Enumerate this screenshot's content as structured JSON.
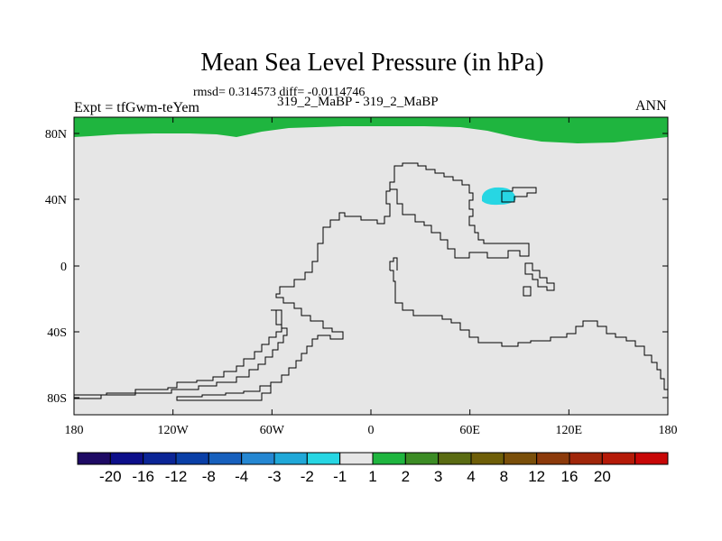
{
  "title": "Mean Sea Level Pressure (in hPa)",
  "stats": "rmsd= 0.314573 diff= -0.0114746",
  "expt": "Expt = tfGwm-teYem",
  "cases": "319_2_MaBP - 319_2_MaBP",
  "season": "ANN",
  "map": {
    "background": "#e6e6e6",
    "arctic_band_color": "#1fb53f",
    "anomaly_patch_color": "#27d6e3",
    "x_ticks": [
      "180",
      "120W",
      "60W",
      "0",
      "60E",
      "120E",
      "180"
    ],
    "y_ticks": [
      "80N",
      "40N",
      "0",
      "40S",
      "80S"
    ]
  },
  "colorbar": {
    "colors": [
      "#1e0a64",
      "#0d0f8a",
      "#0b2596",
      "#0a3fa7",
      "#1760bd",
      "#2587d2",
      "#20a8d8",
      "#27d6e3",
      "#e6e6e6",
      "#1fb53f",
      "#3c8c25",
      "#5a6b12",
      "#6e5e08",
      "#7a4f0a",
      "#8c3a0b",
      "#a0260a",
      "#b51a08",
      "#c80707"
    ],
    "labels": [
      "-20",
      "-16",
      "-12",
      "-8",
      "-4",
      "-3",
      "-2",
      "-1",
      "1",
      "2",
      "3",
      "4",
      "8",
      "12",
      "16",
      "20"
    ]
  }
}
